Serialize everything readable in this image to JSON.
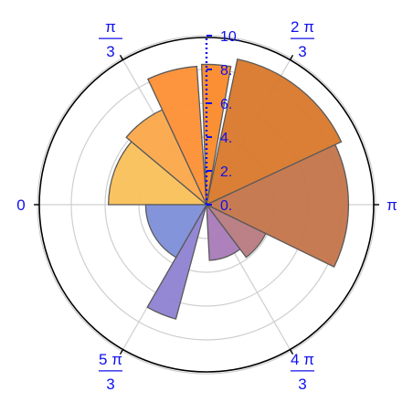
{
  "chart_data": {
    "type": "polar_bar",
    "rlim": [
      0,
      10
    ],
    "r_ticks": [
      "0.",
      "2.",
      "4.",
      "6.",
      "8.",
      "10."
    ],
    "grid": true,
    "angle_labels": [
      {
        "num": "0",
        "den": "",
        "angle_deg": 0
      },
      {
        "num": "π",
        "den": "3",
        "angle_deg": 60
      },
      {
        "num": "2 π",
        "den": "3",
        "angle_deg": 120
      },
      {
        "num": "π",
        "den": "",
        "angle_deg": 180
      },
      {
        "num": "4 π",
        "den": "3",
        "angle_deg": 240
      },
      {
        "num": "5 π",
        "den": "3",
        "angle_deg": 300
      }
    ],
    "sectors": [
      {
        "theta_start_deg": 0,
        "theta_end_deg": 40,
        "r": 5.8,
        "color": "#fac058"
      },
      {
        "theta_start_deg": 40,
        "theta_end_deg": 65,
        "r": 6.2,
        "color": "#fba84a"
      },
      {
        "theta_start_deg": 65,
        "theta_end_deg": 86,
        "r": 8.2,
        "color": "#fd8f35"
      },
      {
        "theta_start_deg": 88,
        "theta_end_deg": 100,
        "r": 8.3,
        "color": "#fa8a28"
      },
      {
        "theta_start_deg": 102,
        "theta_end_deg": 155,
        "r": 8.8,
        "color": "#d8782a"
      },
      {
        "theta_start_deg": 155,
        "theta_end_deg": 206,
        "r": 8.4,
        "color": "#c4744a"
      },
      {
        "theta_start_deg": 206,
        "theta_end_deg": 233,
        "r": 3.9,
        "color": "#b77a80"
      },
      {
        "theta_start_deg": 233,
        "theta_end_deg": 267,
        "r": 3.3,
        "color": "#a97ab8"
      },
      {
        "theta_start_deg": 285,
        "theta_end_deg": 300,
        "r": 7.0,
        "color": "#8e82d2"
      },
      {
        "theta_start_deg": 300,
        "theta_end_deg": 360,
        "r": 3.6,
        "color": "#7d8ed8"
      }
    ]
  }
}
